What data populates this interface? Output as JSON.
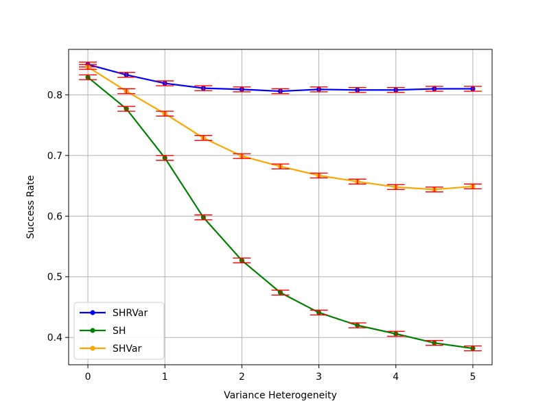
{
  "chart_data": {
    "type": "line",
    "title": "",
    "xlabel": "Variance Heterogeneity",
    "ylabel": "Success Rate",
    "xlim": [
      -0.25,
      5.25
    ],
    "ylim": [
      0.355,
      0.875
    ],
    "xticks": [
      0,
      1,
      2,
      3,
      4,
      5
    ],
    "xtick_labels": [
      "0",
      "1",
      "2",
      "3",
      "4",
      "5"
    ],
    "yticks": [
      0.4,
      0.5,
      0.6,
      0.7,
      0.8
    ],
    "ytick_labels": [
      "0.4",
      "0.5",
      "0.6",
      "0.7",
      "0.8"
    ],
    "grid": true,
    "legend_position": "lower-left",
    "x": [
      0,
      0.5,
      1,
      1.5,
      2,
      2.5,
      3,
      3.5,
      4,
      4.5,
      5
    ],
    "error": 0.004,
    "error_color": "#ff0000",
    "series": [
      {
        "name": "SHRVar",
        "color": "#0000ff",
        "values": [
          0.85,
          0.833,
          0.819,
          0.811,
          0.809,
          0.806,
          0.809,
          0.808,
          0.808,
          0.81,
          0.81
        ]
      },
      {
        "name": "SH",
        "color": "#008000",
        "values": [
          0.829,
          0.777,
          0.696,
          0.598,
          0.527,
          0.474,
          0.441,
          0.42,
          0.406,
          0.391,
          0.382
        ]
      },
      {
        "name": "SHVar",
        "color": "#ffa500",
        "values": [
          0.846,
          0.806,
          0.769,
          0.729,
          0.699,
          0.682,
          0.667,
          0.657,
          0.648,
          0.644,
          0.649
        ]
      }
    ]
  }
}
